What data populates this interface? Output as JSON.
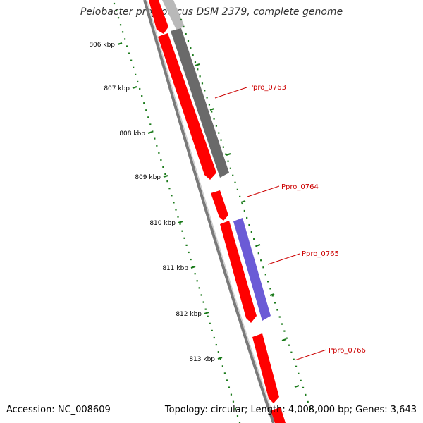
{
  "header": {
    "title": "Pelobacter propionicus DSM 2379, complete genome"
  },
  "footer": {
    "accession": "Accession: NC_008609",
    "summary": "Topology: circular; Length: 4,008,000 bp; Genes: 3,643"
  },
  "colors": {
    "forward_gene": "#ff0000",
    "reverse_gene": "#6b5bd6",
    "grey_gene": "#6a6a6a",
    "backbone": "#8c8c8c",
    "tick": "#1a7a1a",
    "label": "#cc0000"
  },
  "ticks": [
    {
      "label": "806 kbp"
    },
    {
      "label": "807 kbp"
    },
    {
      "label": "808 kbp"
    },
    {
      "label": "809 kbp"
    },
    {
      "label": "810 kbp"
    },
    {
      "label": "811 kbp"
    },
    {
      "label": "812 kbp"
    },
    {
      "label": "813 kbp"
    }
  ],
  "genes": [
    {
      "name": "Ppro_0763"
    },
    {
      "name": "Ppro_0764"
    },
    {
      "name": "Ppro_0765"
    },
    {
      "name": "Ppro_0766"
    }
  ]
}
